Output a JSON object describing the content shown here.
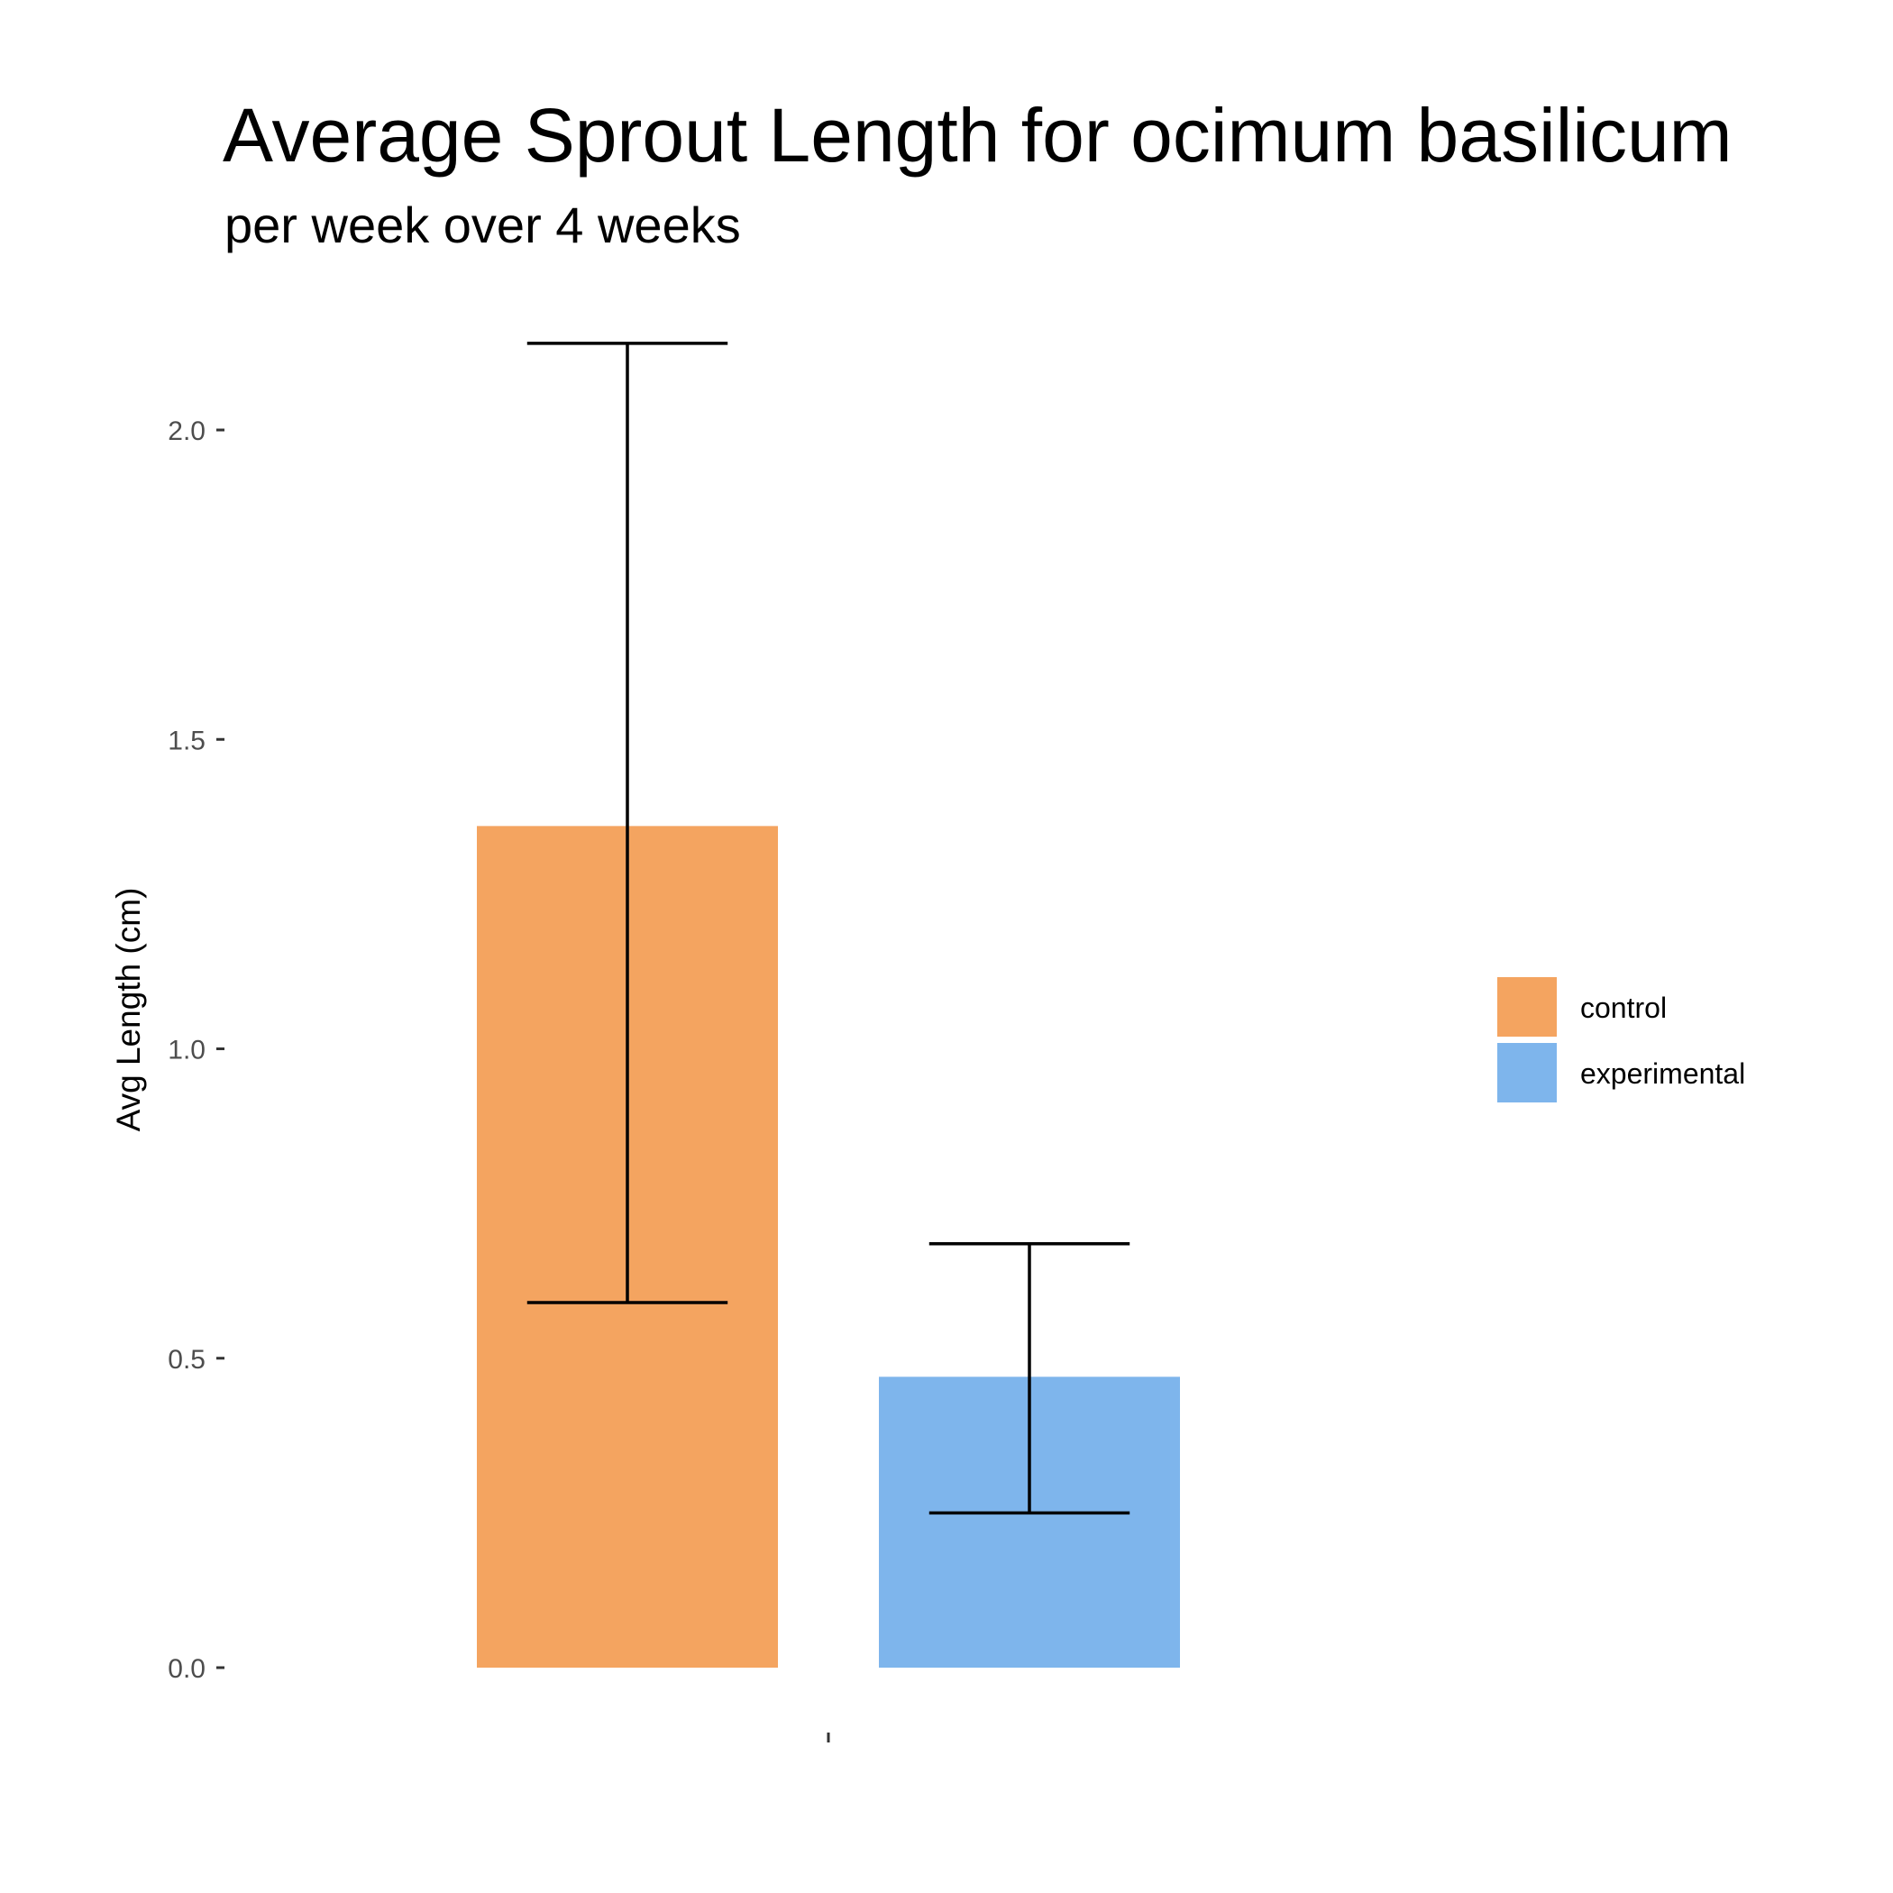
{
  "chart_data": {
    "type": "bar",
    "title": "Average Sprout Length for ocimum basilicum",
    "subtitle": "per week over 4 weeks",
    "xlabel": "",
    "ylabel": "Avg Length (cm)",
    "ylim": [
      0,
      2.2
    ],
    "yticks": [
      "0.0",
      "0.5",
      "1.0",
      "1.5",
      "2.0"
    ],
    "xticks": [
      ""
    ],
    "grid": false,
    "legend_position": "right",
    "series": [
      {
        "name": "control",
        "value": 1.36,
        "error_low": 0.59,
        "error_high": 2.14,
        "color": "#F4A460"
      },
      {
        "name": "experimental",
        "value": 0.47,
        "error_low": 0.25,
        "error_high": 0.685,
        "color": "#7EB5EC"
      }
    ]
  }
}
